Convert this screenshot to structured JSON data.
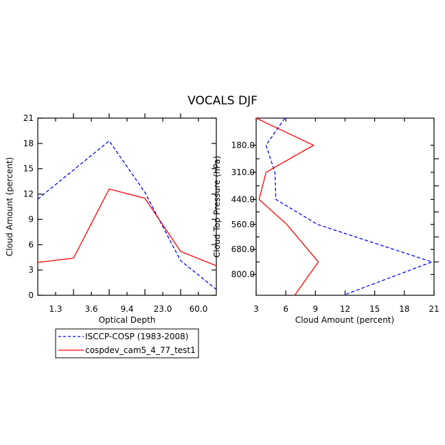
{
  "figure_title": "VOCALS DJF",
  "colors": {
    "obs": "#0000ff",
    "model": "#ff0000",
    "axis": "#000000"
  },
  "legend": {
    "entries": [
      {
        "label": "ISCCP-COSP (1983-2008)",
        "series": "obs",
        "dash": "dashed"
      },
      {
        "label": "cospdev_cam5_4_77_test1",
        "series": "model",
        "dash": "solid"
      }
    ]
  },
  "chart_data": [
    {
      "id": "left",
      "type": "line",
      "xlabel": "Optical Depth",
      "ylabel": "Cloud Amount (percent)",
      "xlim": [
        0,
        5
      ],
      "ylim": [
        0,
        21
      ],
      "x_ticks": [
        {
          "pos": 0.5,
          "label": "1.3"
        },
        {
          "pos": 1.5,
          "label": "3.6"
        },
        {
          "pos": 2.5,
          "label": "9.4"
        },
        {
          "pos": 3.5,
          "label": "23.0"
        },
        {
          "pos": 4.5,
          "label": "60.0"
        }
      ],
      "x_minor_ticks": [
        1,
        2,
        3,
        4
      ],
      "y_ticks": [
        0,
        3,
        6,
        9,
        12,
        15,
        18,
        21
      ],
      "series": [
        {
          "name": "ISCCP-COSP (1983-2008)",
          "key": "obs",
          "dash": "dashed",
          "x": [
            0,
            2,
            3,
            4,
            5
          ],
          "y": [
            11.4,
            18.3,
            12.2,
            4.1,
            0.7
          ]
        },
        {
          "name": "cospdev_cam5_4_77_test1",
          "key": "model",
          "dash": "solid",
          "x": [
            0,
            1,
            2,
            3,
            4,
            5
          ],
          "y": [
            3.9,
            4.4,
            12.6,
            11.5,
            5.2,
            3.5
          ]
        }
      ]
    },
    {
      "id": "right",
      "type": "line",
      "xlabel": "Cloud Amount (percent)",
      "ylabel": "Cloud Top Pressure (hPa)",
      "xlim": [
        3,
        21
      ],
      "ylim": [
        50,
        900
      ],
      "y_inverted": true,
      "x_ticks": [
        3,
        6,
        9,
        12,
        15,
        18,
        21
      ],
      "y_ticks": [
        {
          "pos": 180,
          "label": "180.0"
        },
        {
          "pos": 310,
          "label": "310.0"
        },
        {
          "pos": 440,
          "label": "440.0"
        },
        {
          "pos": 560,
          "label": "560.0"
        },
        {
          "pos": 680,
          "label": "680.0"
        },
        {
          "pos": 800,
          "label": "800.0"
        }
      ],
      "y_minor_ticks": [
        245,
        375,
        500,
        620,
        740
      ],
      "series": [
        {
          "name": "ISCCP-COSP (1983-2008)",
          "key": "obs",
          "dash": "dashed",
          "x": [
            5.9,
            4.0,
            4.9,
            5.0,
            9.2,
            20.8,
            11.8
          ],
          "y": [
            50,
            180,
            310,
            440,
            560,
            740,
            900
          ]
        },
        {
          "name": "cospdev_cam5_4_77_test1",
          "key": "model",
          "dash": "solid",
          "x": [
            3.0,
            8.8,
            4.0,
            3.3,
            6.1,
            9.3,
            6.9
          ],
          "y": [
            50,
            180,
            310,
            440,
            560,
            740,
            900
          ]
        }
      ]
    }
  ]
}
